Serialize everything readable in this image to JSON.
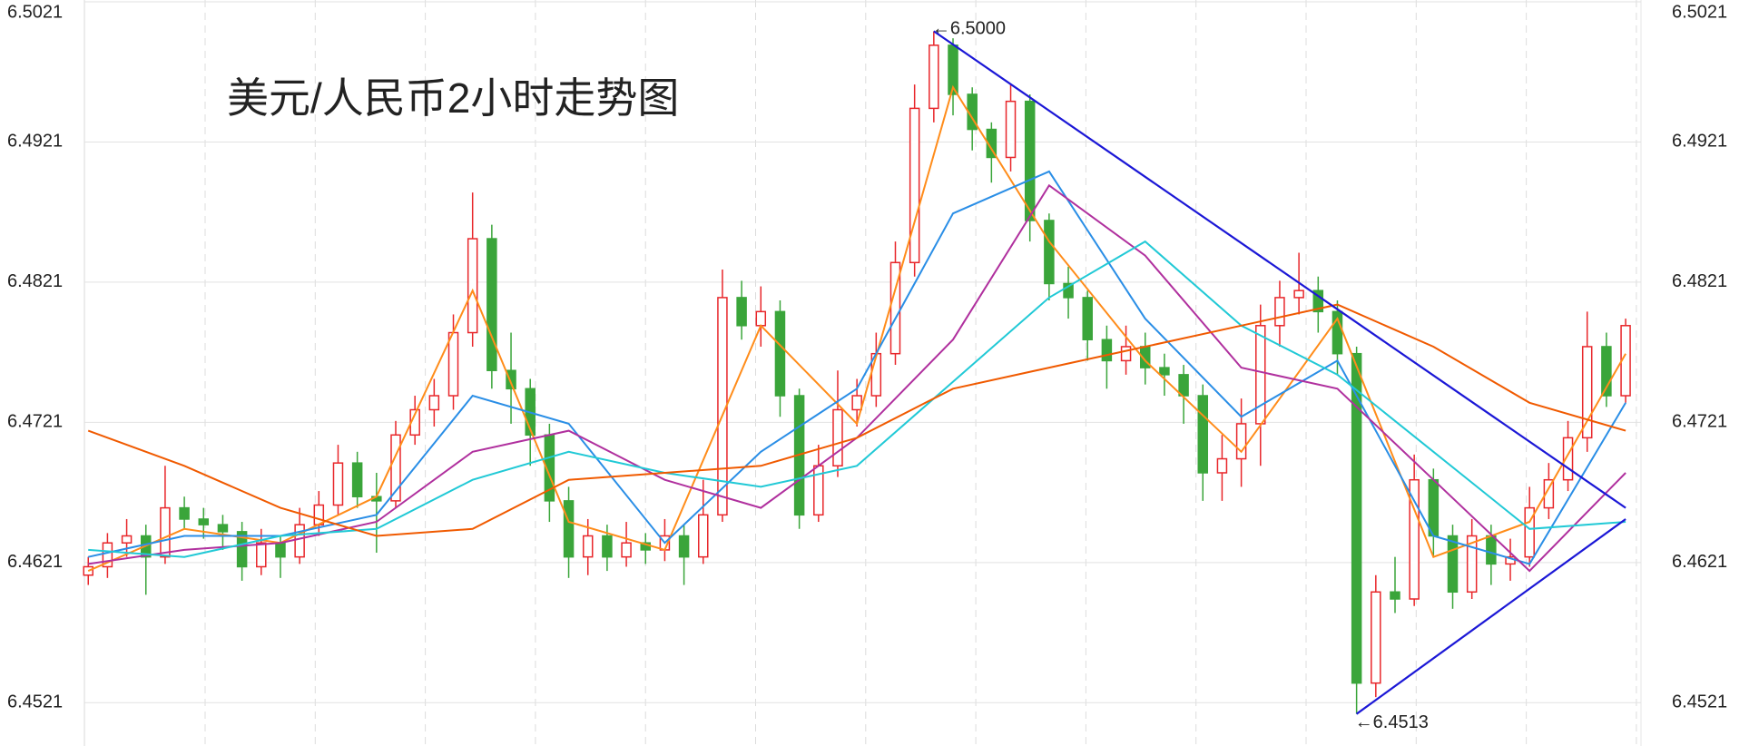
{
  "chart_data": {
    "type": "candlestick",
    "title": "美元/人民币2小时走势图",
    "title_color": "#ff2a00",
    "ylim": [
      6.4494,
      6.5021
    ],
    "yticks": [
      6.4521,
      6.4621,
      6.4721,
      6.4821,
      6.4921,
      6.5021
    ],
    "xlim": [
      -0.2,
      80.8
    ],
    "grid": true,
    "up_color": "#e8262a",
    "down_color": "#3aa53a",
    "open": [
      6.4612,
      6.4618,
      6.4635,
      6.464,
      6.4625,
      6.466,
      6.4652,
      6.4648,
      6.4643,
      6.4618,
      6.4635,
      6.4625,
      6.4648,
      6.4662,
      6.4692,
      6.4668,
      6.4665,
      6.4712,
      6.473,
      6.474,
      6.4785,
      6.4852,
      6.4758,
      6.4745,
      6.4712,
      6.4665,
      6.4625,
      6.464,
      6.4625,
      6.4635,
      6.463,
      6.464,
      6.4625,
      6.4655,
      6.481,
      6.479,
      6.48,
      6.474,
      6.4655,
      6.469,
      6.473,
      6.474,
      6.477,
      6.4835,
      6.4945,
      6.499,
      6.4955,
      6.493,
      6.491,
      6.495,
      6.4865,
      6.482,
      6.481,
      6.478,
      6.4765,
      6.4775,
      6.476,
      6.4755,
      6.474,
      6.4685,
      6.4695,
      6.472,
      6.479,
      6.481,
      6.4815,
      6.48,
      6.477,
      6.4535,
      6.46,
      6.4595,
      6.468,
      6.464,
      6.46,
      6.464,
      6.462,
      6.4625,
      6.466,
      6.468,
      6.471,
      6.4775,
      6.474
    ],
    "high": [
      6.4625,
      6.4642,
      6.4652,
      6.4648,
      6.469,
      6.4668,
      6.466,
      6.4655,
      6.465,
      6.4645,
      6.464,
      6.466,
      6.4672,
      6.4705,
      6.47,
      6.4685,
      6.4722,
      6.474,
      6.4752,
      6.4798,
      6.4885,
      6.4862,
      6.4785,
      6.4752,
      6.472,
      6.4675,
      6.4652,
      6.4648,
      6.465,
      6.4642,
      6.4652,
      6.4648,
      6.468,
      6.483,
      6.4822,
      6.4818,
      6.4808,
      6.4745,
      6.4705,
      6.4758,
      6.4752,
      6.4785,
      6.485,
      6.4962,
      6.5,
      6.4995,
      6.496,
      6.4935,
      6.4962,
      6.4955,
      6.487,
      6.4832,
      6.4815,
      6.479,
      6.479,
      6.4785,
      6.477,
      6.4762,
      6.4748,
      6.4712,
      6.4738,
      6.4805,
      6.4822,
      6.4842,
      6.4825,
      6.4808,
      6.4775,
      6.4612,
      6.4625,
      6.4698,
      6.4688,
      6.4648,
      6.4652,
      6.4648,
      6.4638,
      6.4675,
      6.4692,
      6.4722,
      6.48,
      6.4785,
      6.4795
    ],
    "low": [
      6.4605,
      6.461,
      6.4625,
      6.4598,
      6.462,
      6.4645,
      6.4638,
      6.463,
      6.4608,
      6.4612,
      6.461,
      6.462,
      6.464,
      6.4655,
      6.466,
      6.4628,
      6.466,
      6.4705,
      6.4718,
      6.473,
      6.4775,
      6.4745,
      6.472,
      6.469,
      6.465,
      6.461,
      6.4612,
      6.4615,
      6.4618,
      6.462,
      6.4622,
      6.4605,
      6.462,
      6.465,
      6.478,
      6.4775,
      6.4725,
      6.4645,
      6.465,
      6.4682,
      6.4718,
      6.4732,
      6.4762,
      6.4825,
      6.4935,
      6.494,
      6.4915,
      6.4892,
      6.49,
      6.485,
      6.4808,
      6.4795,
      6.4765,
      6.4745,
      6.4755,
      6.4748,
      6.474,
      6.472,
      6.4665,
      6.4665,
      6.4675,
      6.469,
      6.4775,
      6.4798,
      6.4785,
      6.4755,
      6.4513,
      6.4525,
      6.4585,
      6.459,
      6.4625,
      6.4588,
      6.4595,
      6.4605,
      6.4608,
      6.4618,
      6.4652,
      6.4672,
      6.47,
      6.4732,
      6.4735
    ],
    "close": [
      6.4618,
      6.4635,
      6.464,
      6.4625,
      6.466,
      6.4652,
      6.4648,
      6.4643,
      6.4618,
      6.4635,
      6.4625,
      6.4648,
      6.4662,
      6.4692,
      6.4668,
      6.4665,
      6.4712,
      6.473,
      6.474,
      6.4785,
      6.4852,
      6.4758,
      6.4745,
      6.4712,
      6.4665,
      6.4625,
      6.464,
      6.4625,
      6.4635,
      6.463,
      6.464,
      6.4625,
      6.4655,
      6.481,
      6.479,
      6.48,
      6.474,
      6.4655,
      6.469,
      6.473,
      6.474,
      6.477,
      6.4835,
      6.4945,
      6.499,
      6.4955,
      6.493,
      6.491,
      6.495,
      6.4865,
      6.482,
      6.481,
      6.478,
      6.4765,
      6.4775,
      6.476,
      6.4755,
      6.474,
      6.4685,
      6.4695,
      6.472,
      6.479,
      6.481,
      6.4815,
      6.48,
      6.477,
      6.4535,
      6.46,
      6.4595,
      6.468,
      6.464,
      6.46,
      6.464,
      6.462,
      6.4625,
      6.466,
      6.468,
      6.471,
      6.4775,
      6.474,
      6.479
    ],
    "lines": [
      {
        "color": "#ff8c1a",
        "x": [
          0,
          5,
          10,
          15,
          20,
          25,
          30,
          35,
          40,
          45,
          50,
          55,
          60,
          65,
          70,
          75,
          80
        ],
        "values": [
          6.4615,
          6.4645,
          6.4635,
          6.4668,
          6.4815,
          6.465,
          6.463,
          6.479,
          6.472,
          6.496,
          6.485,
          6.4765,
          6.47,
          6.4795,
          6.4625,
          6.465,
          6.477
        ]
      },
      {
        "color": "#2a8ee6",
        "x": [
          0,
          5,
          10,
          15,
          20,
          25,
          30,
          35,
          40,
          45,
          50,
          55,
          60,
          65,
          70,
          75,
          80
        ],
        "values": [
          6.4625,
          6.464,
          6.464,
          6.4655,
          6.474,
          6.472,
          6.4635,
          6.47,
          6.4745,
          6.487,
          6.49,
          6.4795,
          6.4725,
          6.4765,
          6.464,
          6.462,
          6.4735
        ]
      },
      {
        "color": "#b0309e",
        "x": [
          0,
          5,
          10,
          15,
          20,
          25,
          30,
          35,
          40,
          45,
          50,
          55,
          60,
          65,
          70,
          75,
          80
        ],
        "values": [
          6.462,
          6.463,
          6.4635,
          6.465,
          6.47,
          6.4715,
          6.468,
          6.466,
          6.471,
          6.478,
          6.489,
          6.484,
          6.476,
          6.4745,
          6.468,
          6.4615,
          6.4685
        ]
      },
      {
        "color": "#21c9d6",
        "x": [
          0,
          5,
          10,
          15,
          20,
          25,
          30,
          35,
          40,
          45,
          50,
          55,
          60,
          65,
          70,
          75,
          80
        ],
        "values": [
          6.463,
          6.4625,
          6.464,
          6.4645,
          6.468,
          6.47,
          6.4685,
          6.4675,
          6.469,
          6.475,
          6.481,
          6.485,
          6.479,
          6.4755,
          6.47,
          6.4645,
          6.465
        ]
      },
      {
        "color": "#f05a00",
        "x": [
          0,
          5,
          10,
          15,
          20,
          25,
          30,
          35,
          40,
          45,
          50,
          55,
          60,
          65,
          70,
          75,
          80
        ],
        "values": [
          6.4715,
          6.469,
          6.466,
          6.464,
          6.4645,
          6.468,
          6.4685,
          6.469,
          6.471,
          6.4745,
          6.476,
          6.4775,
          6.479,
          6.4805,
          6.4775,
          6.4735,
          6.4715
        ]
      }
    ],
    "trendlines": [
      {
        "color": "#1b17d6",
        "x": [
          44,
          80
        ],
        "values": [
          6.5,
          6.466
        ]
      },
      {
        "color": "#1b17d6",
        "x": [
          66,
          80
        ],
        "values": [
          6.4513,
          6.4652
        ]
      }
    ],
    "annotations": [
      {
        "text": "←6.5000",
        "x": 44,
        "y": 6.5
      },
      {
        "text": "←6.4513",
        "x": 66,
        "y": 6.4513
      }
    ]
  }
}
